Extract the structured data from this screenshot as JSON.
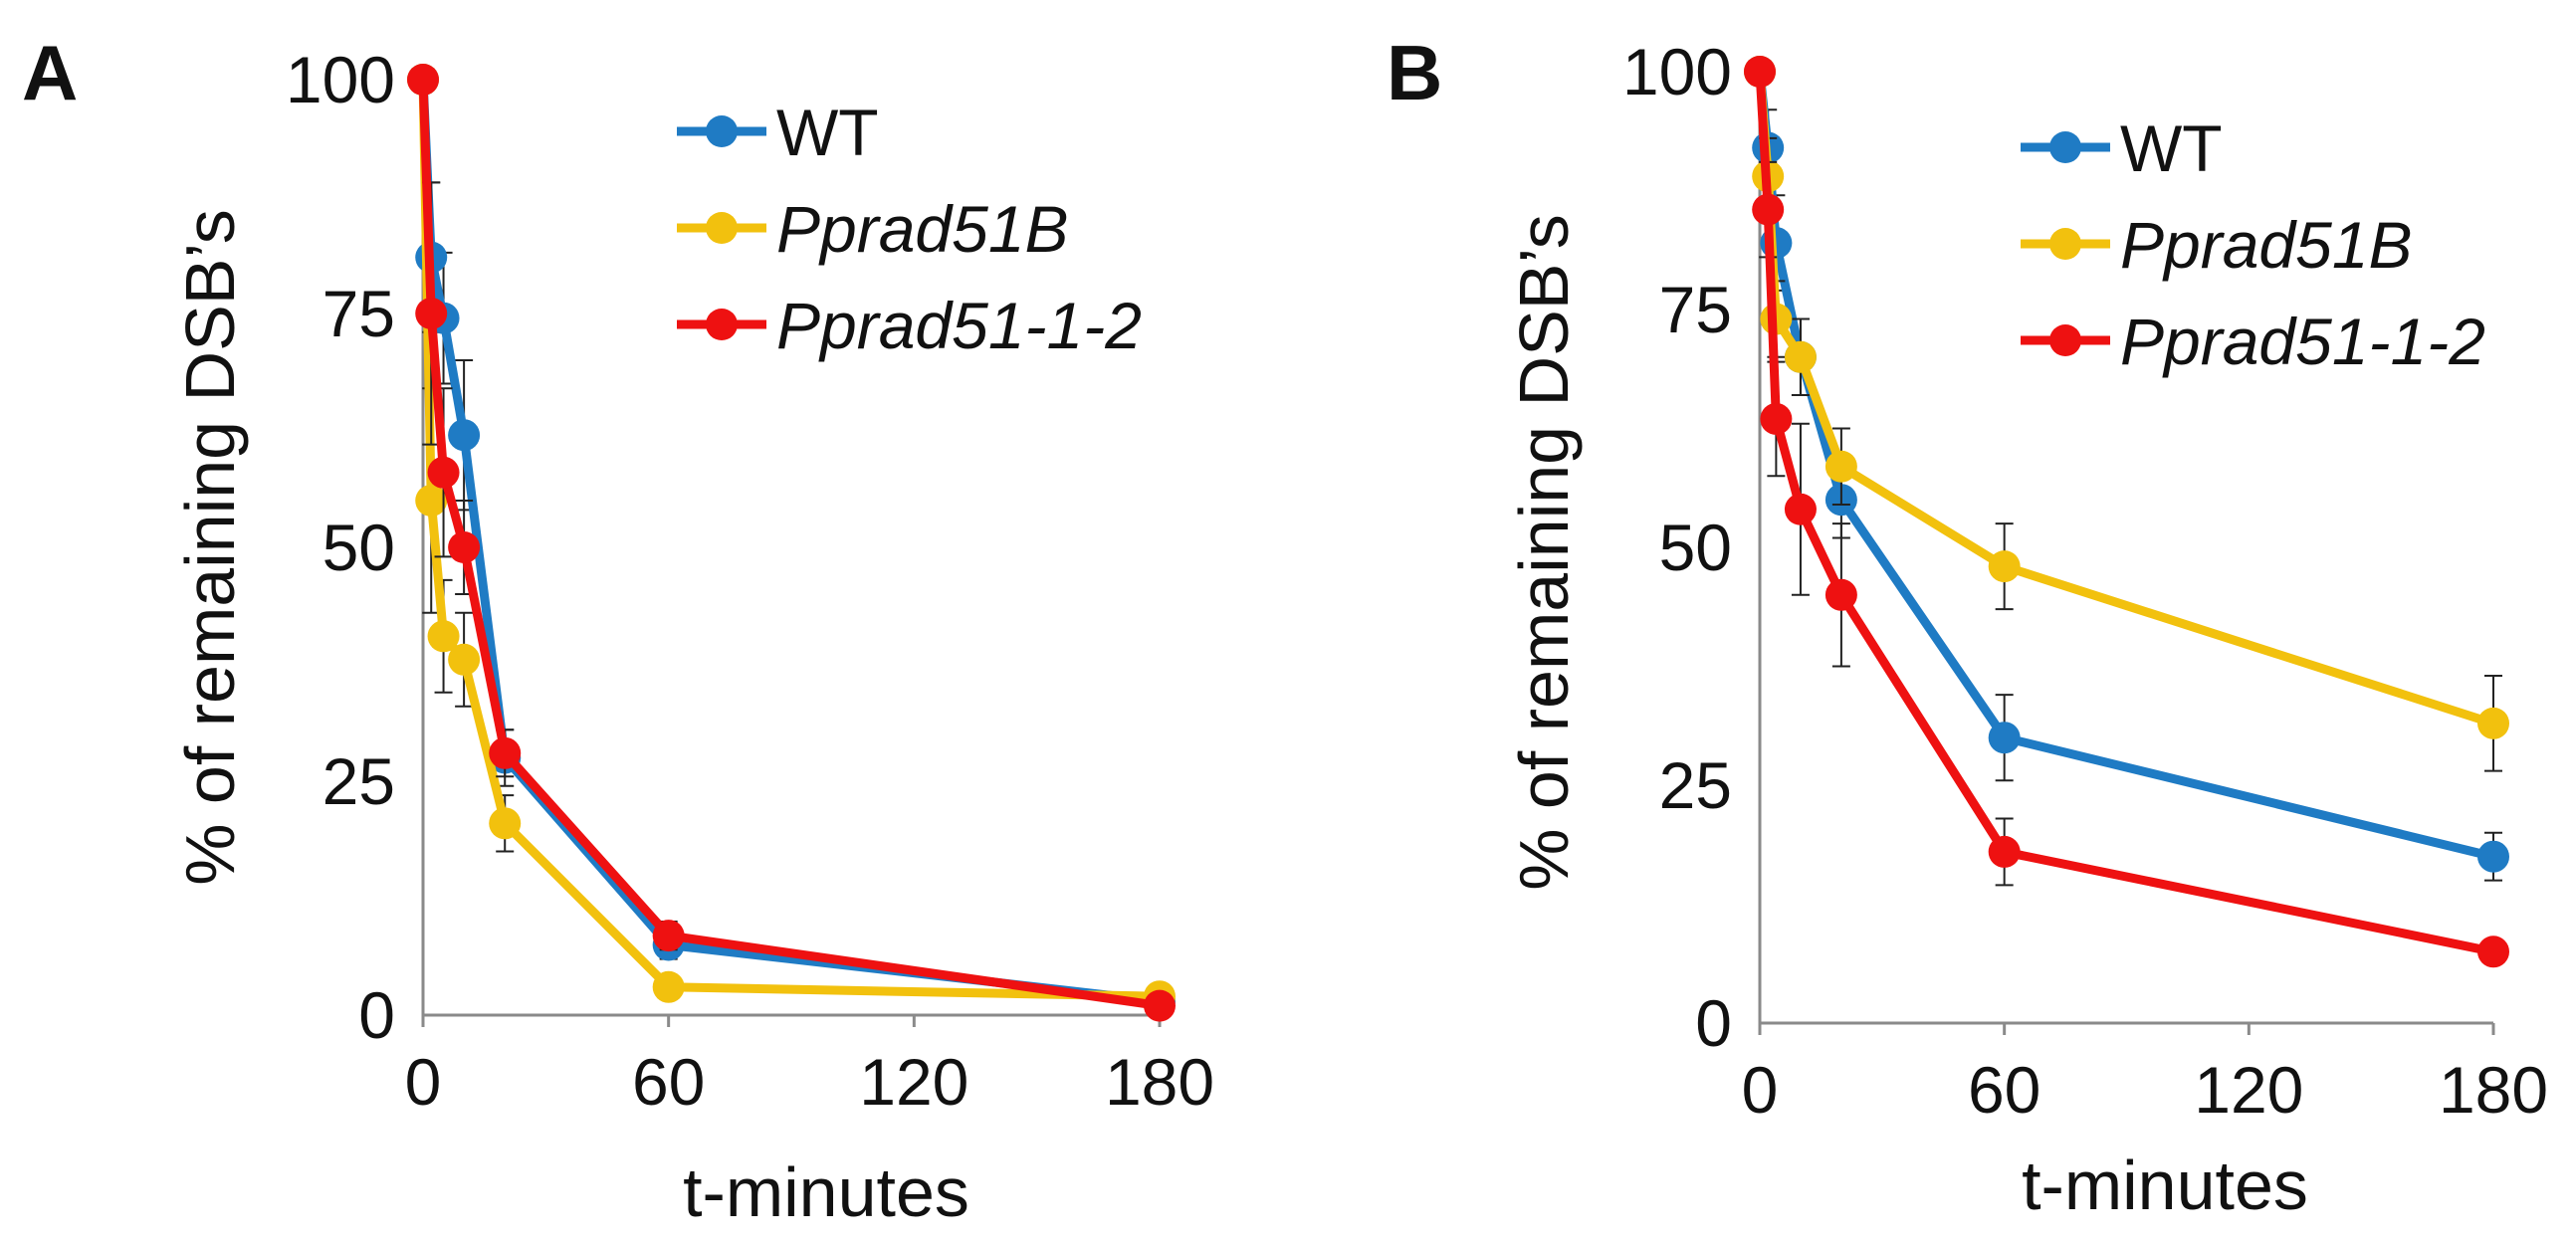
{
  "chart_data": [
    {
      "panel_label": "A",
      "type": "line",
      "xlabel": "t-minutes",
      "ylabel": "% of remaining DSB’s",
      "xlim": [
        0,
        180
      ],
      "ylim": [
        0,
        100
      ],
      "xticks": [
        0,
        60,
        120,
        180
      ],
      "yticks": [
        0,
        25,
        50,
        75,
        100
      ],
      "xtick_labels": [
        "0",
        "60",
        "120",
        "180"
      ],
      "ytick_labels": [
        "0",
        "25",
        "50",
        "75",
        "100"
      ],
      "grid": false,
      "legend_position": "top-right",
      "series": [
        {
          "name": "WT",
          "italic": false,
          "color": "#1f7bc4",
          "x": [
            0,
            2,
            5,
            10,
            20,
            60,
            180
          ],
          "y": [
            100,
            81,
            74.5,
            62,
            27.5,
            7.5,
            1.5
          ],
          "err": [
            0,
            8,
            7,
            8,
            3,
            1.5,
            1
          ]
        },
        {
          "name": "Pprad51B",
          "italic": true,
          "color": "#f2c10e",
          "x": [
            0,
            2,
            5,
            10,
            20,
            60,
            180
          ],
          "y": [
            100,
            55,
            40.5,
            38,
            20.5,
            3,
            2
          ],
          "err": [
            0,
            12,
            6,
            5,
            3,
            1,
            1
          ]
        },
        {
          "name": "Pprad51-1-2",
          "italic": true,
          "color": "#ee1111",
          "x": [
            0,
            2,
            5,
            10,
            20,
            60,
            180
          ],
          "y": [
            100,
            75,
            58,
            50,
            28,
            8.5,
            1
          ],
          "err": [
            0,
            14,
            9,
            5,
            2.5,
            1.5,
            0.5
          ]
        }
      ]
    },
    {
      "panel_label": "B",
      "type": "line",
      "xlabel": "t-minutes",
      "ylabel": "% of remaining DSB’s",
      "xlim": [
        0,
        180
      ],
      "ylim": [
        0,
        100
      ],
      "xticks": [
        0,
        60,
        120,
        180
      ],
      "yticks": [
        0,
        25,
        50,
        75,
        100
      ],
      "xtick_labels": [
        "0",
        "60",
        "120",
        "180"
      ],
      "ytick_labels": [
        "0",
        "25",
        "50",
        "75",
        "100"
      ],
      "grid": false,
      "legend_position": "top-right",
      "series": [
        {
          "name": "WT",
          "italic": false,
          "color": "#1f7bc4",
          "x": [
            0,
            2,
            4,
            10,
            20,
            60,
            180
          ],
          "y": [
            100,
            92,
            82,
            70,
            55,
            30,
            17.5
          ],
          "err": [
            0,
            4,
            5,
            4,
            4,
            4.5,
            2.5
          ]
        },
        {
          "name": "Pprad51B",
          "italic": true,
          "color": "#f2c10e",
          "x": [
            0,
            2,
            4,
            10,
            20,
            60,
            180
          ],
          "y": [
            100,
            89,
            74,
            70,
            58.5,
            48,
            31.5
          ],
          "err": [
            0,
            4,
            4,
            4,
            4,
            4.5,
            5
          ]
        },
        {
          "name": "Pprad51-1-2",
          "italic": true,
          "color": "#ee1111",
          "x": [
            0,
            2,
            4,
            10,
            20,
            60,
            180
          ],
          "y": [
            100,
            85.5,
            63.5,
            54,
            45,
            18,
            7.5
          ],
          "err": [
            0,
            5,
            6,
            9,
            7.5,
            3.5,
            1
          ]
        }
      ]
    }
  ]
}
